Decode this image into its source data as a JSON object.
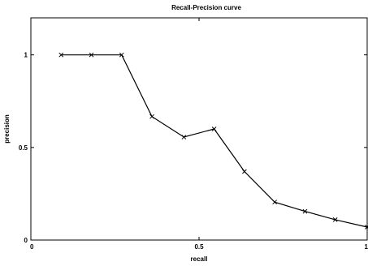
{
  "chart_data": {
    "type": "line",
    "title": "Recall-Precision curve",
    "xlabel": "recall",
    "ylabel": "precision",
    "xlim": [
      0,
      1
    ],
    "ylim": [
      0,
      1.2
    ],
    "xticks": [
      {
        "value": 0,
        "label": "0"
      },
      {
        "value": 0.5,
        "label": "0.5"
      },
      {
        "value": 1,
        "label": "1"
      }
    ],
    "yticks": [
      {
        "value": 0,
        "label": "0"
      },
      {
        "value": 0.5,
        "label": "0.5"
      },
      {
        "value": 1,
        "label": "1"
      }
    ],
    "grid": false,
    "series": [
      {
        "marker": "x",
        "color": "#000000",
        "points": [
          {
            "x": 0.09,
            "y": 1.0
          },
          {
            "x": 0.18,
            "y": 1.0
          },
          {
            "x": 0.27,
            "y": 1.0
          },
          {
            "x": 0.36,
            "y": 0.667
          },
          {
            "x": 0.455,
            "y": 0.556
          },
          {
            "x": 0.545,
            "y": 0.6
          },
          {
            "x": 0.635,
            "y": 0.37
          },
          {
            "x": 0.725,
            "y": 0.205
          },
          {
            "x": 0.815,
            "y": 0.155
          },
          {
            "x": 0.905,
            "y": 0.11
          },
          {
            "x": 1.0,
            "y": 0.07
          }
        ]
      }
    ]
  }
}
